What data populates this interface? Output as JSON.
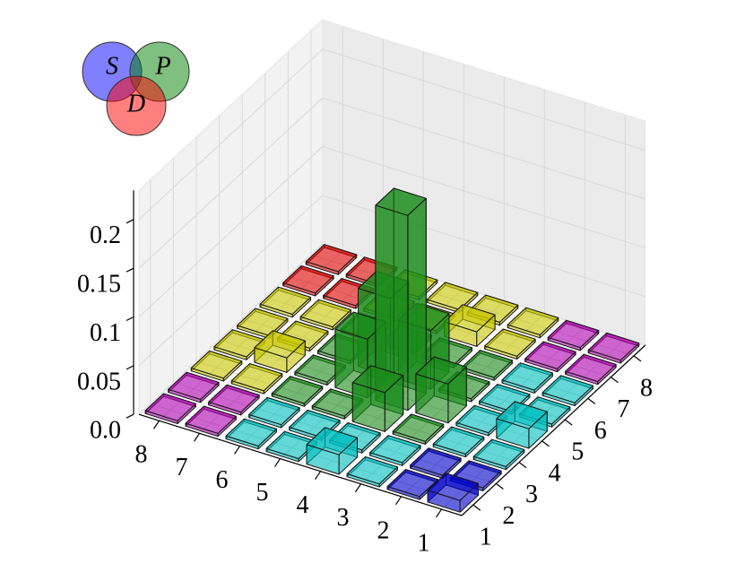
{
  "chart_data": {
    "type": "bar3d",
    "x_categories": [
      "1",
      "2",
      "3",
      "4",
      "5",
      "6",
      "7",
      "8"
    ],
    "y_categories": [
      "1",
      "2",
      "3",
      "4",
      "5",
      "6",
      "7",
      "8"
    ],
    "values": [
      [
        0.012,
        0.003,
        0.003,
        0.02,
        0.003,
        0.003,
        0.003,
        0.003
      ],
      [
        0.003,
        0.003,
        0.003,
        0.003,
        0.003,
        0.003,
        0.003,
        0.003
      ],
      [
        0.003,
        0.003,
        0.003,
        0.04,
        0.003,
        0.003,
        0.003,
        0.003
      ],
      [
        0.02,
        0.003,
        0.04,
        0.2,
        0.06,
        0.003,
        0.015,
        0.003
      ],
      [
        0.003,
        0.003,
        0.003,
        0.06,
        0.08,
        0.003,
        0.003,
        0.003
      ],
      [
        0.003,
        0.003,
        0.003,
        0.003,
        0.003,
        0.003,
        0.003,
        0.003
      ],
      [
        0.003,
        0.003,
        0.003,
        0.015,
        0.003,
        0.003,
        0.003,
        0.003
      ],
      [
        0.003,
        0.003,
        0.003,
        0.003,
        0.003,
        0.003,
        0.003,
        0.003
      ]
    ],
    "colors": [
      [
        "#0000cc",
        "#0000cc",
        "#00c0c0",
        "#00c0c0",
        "#00c0c0",
        "#00c0c0",
        "#b000b0",
        "#b000b0"
      ],
      [
        "#0000cc",
        "#0000cc",
        "#00c0c0",
        "#00c0c0",
        "#00c0c0",
        "#00c0c0",
        "#b000b0",
        "#b000b0"
      ],
      [
        "#00c0c0",
        "#00c0c0",
        "#1a8c1a",
        "#1a8c1a",
        "#1a8c1a",
        "#1a8c1a",
        "#c8c800",
        "#c8c800"
      ],
      [
        "#00c0c0",
        "#00c0c0",
        "#1a8c1a",
        "#1a8c1a",
        "#1a8c1a",
        "#1a8c1a",
        "#c8c800",
        "#c8c800"
      ],
      [
        "#00c0c0",
        "#00c0c0",
        "#1a8c1a",
        "#1a8c1a",
        "#1a8c1a",
        "#1a8c1a",
        "#c8c800",
        "#c8c800"
      ],
      [
        "#00c0c0",
        "#00c0c0",
        "#1a8c1a",
        "#1a8c1a",
        "#1a8c1a",
        "#1a8c1a",
        "#c8c800",
        "#c8c800"
      ],
      [
        "#b000b0",
        "#b000b0",
        "#c8c800",
        "#c8c800",
        "#c8c800",
        "#c8c800",
        "#e00000",
        "#e00000"
      ],
      [
        "#b000b0",
        "#b000b0",
        "#c8c800",
        "#c8c800",
        "#c8c800",
        "#c8c800",
        "#e00000",
        "#e00000"
      ]
    ],
    "zlim": [
      0,
      0.23
    ],
    "zticks": [
      {
        "value": 0,
        "label": "0.0"
      },
      0.05,
      0.1,
      0.15,
      0.2
    ],
    "grid": true,
    "legend": [
      {
        "name": "S",
        "color": "#0000ff"
      },
      {
        "name": "P",
        "color": "#008000"
      },
      {
        "name": "D",
        "color": "#ff0000"
      }
    ]
  }
}
